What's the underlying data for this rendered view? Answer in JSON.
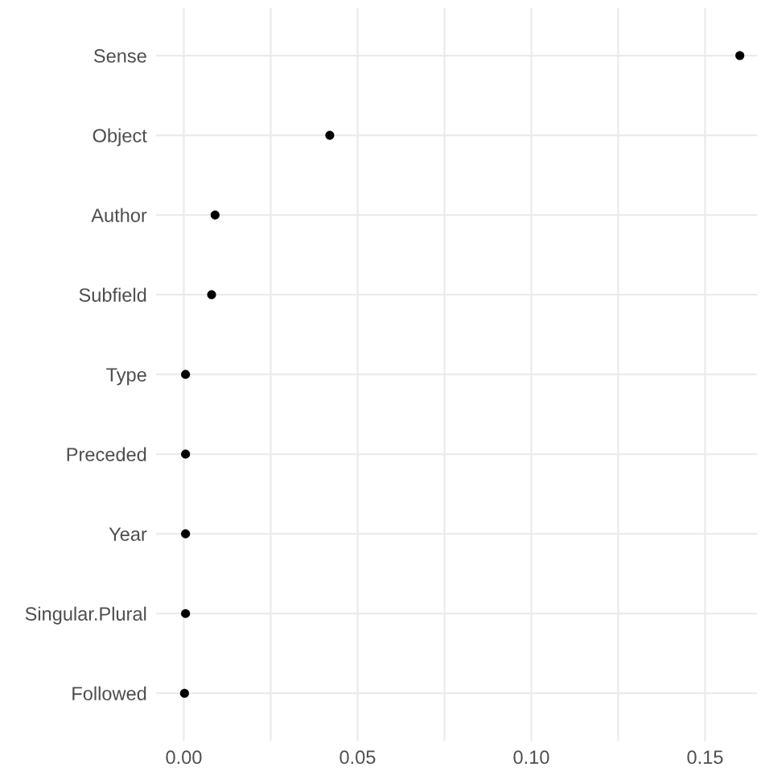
{
  "chart_data": {
    "type": "scatter",
    "orientation": "horizontal",
    "categories": [
      "Sense",
      "Object",
      "Author",
      "Subfield",
      "Type",
      "Preceded",
      "Year",
      "Singular.Plural",
      "Followed"
    ],
    "values": [
      0.16,
      0.042,
      0.009,
      0.008,
      0.0005,
      0.0005,
      0.0005,
      0.0005,
      0.0002
    ],
    "color": "#000000",
    "marker": "circle",
    "xlim": [
      -0.008,
      0.165
    ],
    "xticks": [
      {
        "value": 0.0,
        "label": "0.00"
      },
      {
        "value": 0.025,
        "label": null
      },
      {
        "value": 0.05,
        "label": "0.05"
      },
      {
        "value": 0.075,
        "label": null
      },
      {
        "value": 0.1,
        "label": "0.10"
      },
      {
        "value": 0.125,
        "label": null
      },
      {
        "value": 0.15,
        "label": "0.15"
      }
    ],
    "grid": true
  }
}
